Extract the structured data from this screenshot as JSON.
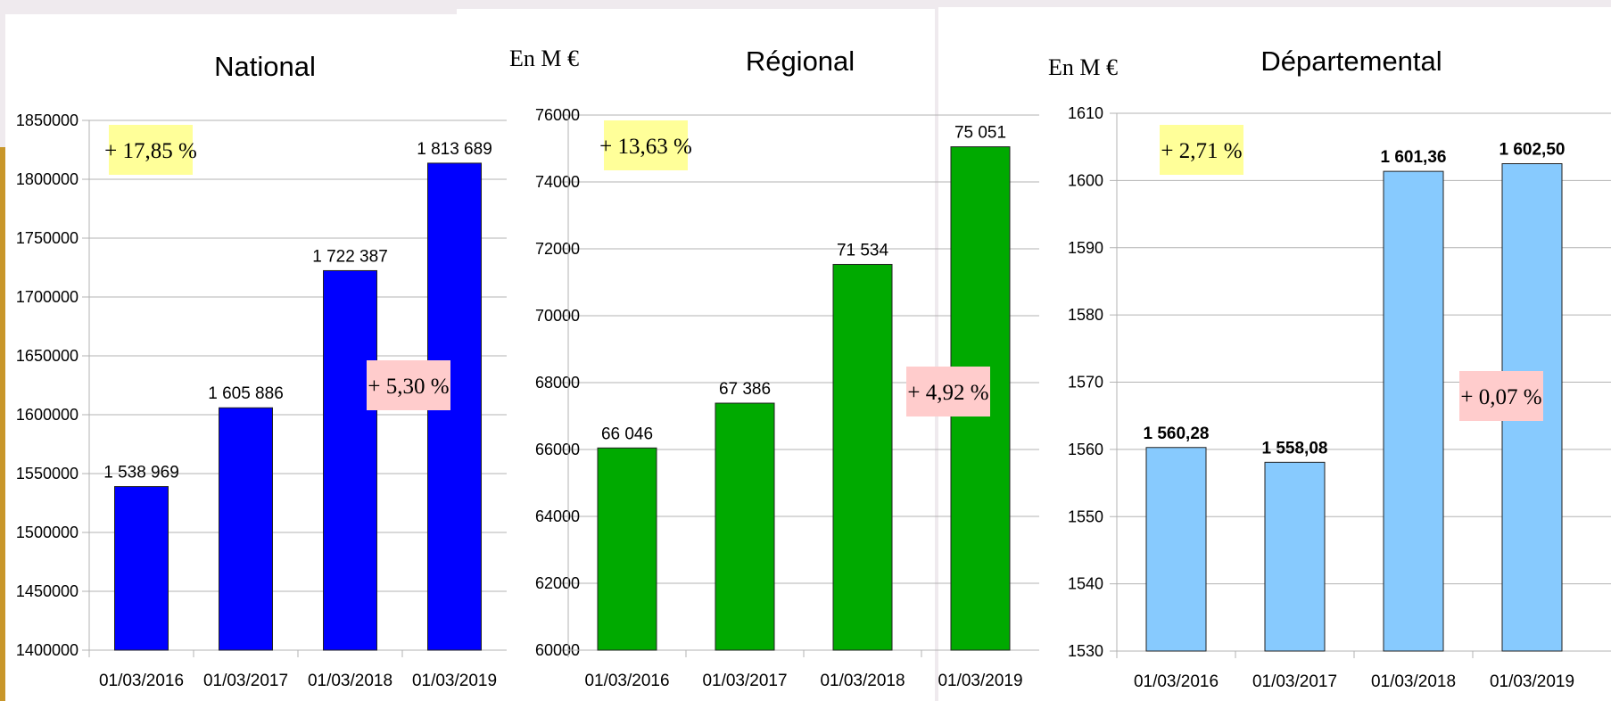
{
  "chart_data": [
    {
      "type": "bar",
      "title": "National",
      "unit_label": "",
      "categories": [
        "01/03/2016",
        "01/03/2017",
        "01/03/2018",
        "01/03/2019"
      ],
      "values": [
        1538969,
        1605886,
        1722387,
        1813689
      ],
      "value_labels": [
        "1 538 969",
        "1 605 886",
        "1 722 387",
        "1 813 689"
      ],
      "ylim": [
        1400000,
        1850000
      ],
      "yticks": [
        1400000,
        1450000,
        1500000,
        1550000,
        1600000,
        1650000,
        1700000,
        1750000,
        1800000,
        1850000
      ],
      "ytick_labels": [
        "1400000",
        "1450000",
        "1500000",
        "1550000",
        "1600000",
        "1650000",
        "1700000",
        "1750000",
        "1800000",
        "1850000"
      ],
      "bar_color": "#0000ff",
      "grid": true,
      "bold_labels": false,
      "annotations": [
        {
          "text": "+ 17,85 %",
          "color": "#ffff99"
        },
        {
          "text": "+ 5,30 %",
          "color": "#ffcccc"
        }
      ]
    },
    {
      "type": "bar",
      "title": "Régional",
      "unit_label": "En M €",
      "categories": [
        "01/03/2016",
        "01/03/2017",
        "01/03/2018",
        "01/03/2019"
      ],
      "values": [
        66046,
        67386,
        71534,
        75051
      ],
      "value_labels": [
        "66 046",
        "67 386",
        "71 534",
        "75 051"
      ],
      "ylim": [
        60000,
        76000
      ],
      "yticks": [
        60000,
        62000,
        64000,
        66000,
        68000,
        70000,
        72000,
        74000,
        76000
      ],
      "ytick_labels": [
        "60000",
        "62000",
        "64000",
        "66000",
        "68000",
        "70000",
        "72000",
        "74000",
        "76000"
      ],
      "bar_color": "#00aa00",
      "grid": true,
      "bold_labels": false,
      "annotations": [
        {
          "text": "+ 13,63 %",
          "color": "#ffff99"
        },
        {
          "text": "+ 4,92 %",
          "color": "#ffcccc"
        }
      ]
    },
    {
      "type": "bar",
      "title": "Départemental",
      "unit_label": "En M €",
      "categories": [
        "01/03/2016",
        "01/03/2017",
        "01/03/2018",
        "01/03/2019"
      ],
      "values": [
        1560.28,
        1558.08,
        1601.36,
        1602.5
      ],
      "value_labels": [
        "1 560,28",
        "1 558,08",
        "1 601,36",
        "1 602,50"
      ],
      "ylim": [
        1530,
        1610
      ],
      "yticks": [
        1530,
        1540,
        1550,
        1560,
        1570,
        1580,
        1590,
        1600,
        1610
      ],
      "ytick_labels": [
        "1530",
        "1540",
        "1550",
        "1560",
        "1570",
        "1580",
        "1590",
        "1600",
        "1610"
      ],
      "bar_color": "#87cafe",
      "grid": true,
      "bold_labels": true,
      "annotations": [
        {
          "text": "+ 2,71 %",
          "color": "#ffff99"
        },
        {
          "text": "+ 0,07 %",
          "color": "#ffcccc"
        }
      ]
    }
  ]
}
